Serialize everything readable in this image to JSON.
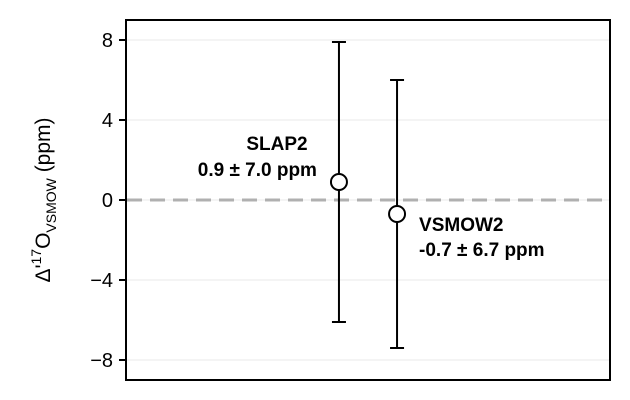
{
  "chart_data": {
    "type": "scatter",
    "xlabel": "",
    "ylabel": {
      "prefix": "Δ'",
      "sup": "17",
      "main": "O",
      "sub": "VSMOW",
      "suffix": " (ppm)"
    },
    "ylim": [
      -9,
      9
    ],
    "xlim": [
      0,
      1
    ],
    "yticks": [
      8,
      4,
      0,
      -4,
      -8
    ],
    "ytick_labels": [
      "8",
      "4",
      "0",
      "−4",
      "−8"
    ],
    "grid": "horizontal",
    "reference_line": {
      "y": 0,
      "style": "dashed",
      "color": "#b0b0b0"
    },
    "points": [
      {
        "name": "SLAP2",
        "x": 0.44,
        "y": 0.9,
        "err": 7.0,
        "annotation": "0.9 ± 7.0 ppm",
        "label_side": "left"
      },
      {
        "name": "VSMOW2",
        "x": 0.56,
        "y": -0.7,
        "err": 6.7,
        "annotation": "-0.7 ± 6.7 ppm",
        "label_side": "right"
      }
    ],
    "colors": {
      "marker_fill": "#ffffff",
      "marker_edge": "#000000",
      "errorbar": "#000000",
      "grid": "#e8e8e8"
    }
  }
}
